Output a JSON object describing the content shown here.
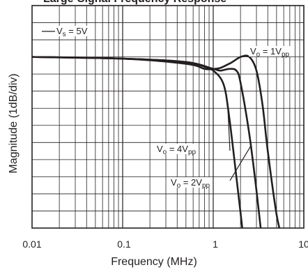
{
  "chart_data": {
    "type": "line",
    "title": "Large-Signal Frequency Response",
    "xlabel": "Frequency (MHz)",
    "ylabel": "Magnitude (1dB/div)",
    "x_scale": "log",
    "xlim": [
      0.01,
      10
    ],
    "ylim_db": [
      -10,
      3
    ],
    "x_ticks": [
      "0.01",
      "0.1",
      "1",
      "10"
    ],
    "grid": true,
    "annotations": {
      "supply": {
        "text": "V",
        "sub": "s",
        "rest": " = 5V"
      },
      "vo1": {
        "text": "V",
        "sub": "o",
        "mid": " = 1V",
        "sub2": "pp"
      },
      "vo4": {
        "text": "V",
        "sub": "o",
        "mid": " = 4V",
        "sub2": "pp"
      },
      "vo2": {
        "text": "V",
        "sub": "o",
        "mid": " = 2V",
        "sub2": "pp"
      }
    },
    "series": [
      {
        "name": "Vo = 1Vpp",
        "x": [
          0.01,
          0.1,
          0.5,
          1,
          1.5,
          2,
          2.5,
          3,
          3.5,
          4,
          5,
          6
        ],
        "y": [
          0,
          -0.1,
          -0.3,
          -0.7,
          -0.4,
          0,
          0,
          -0.8,
          -2.8,
          -5.5,
          -9.2,
          -11
        ]
      },
      {
        "name": "Vo = 2Vpp",
        "x": [
          0.01,
          0.1,
          0.5,
          1,
          1.2,
          1.5,
          1.8,
          2,
          2.5,
          3,
          3.5
        ],
        "y": [
          0,
          -0.1,
          -0.3,
          -0.7,
          -0.8,
          -0.7,
          -0.8,
          -1.5,
          -4.5,
          -7.8,
          -11
        ]
      },
      {
        "name": "Vo = 4Vpp",
        "x": [
          0.01,
          0.1,
          0.5,
          0.8,
          1,
          1.3,
          1.5,
          1.8,
          2.2
        ],
        "y": [
          0,
          -0.1,
          -0.4,
          -0.7,
          -0.8,
          -1.6,
          -3.5,
          -7,
          -11
        ]
      }
    ]
  }
}
